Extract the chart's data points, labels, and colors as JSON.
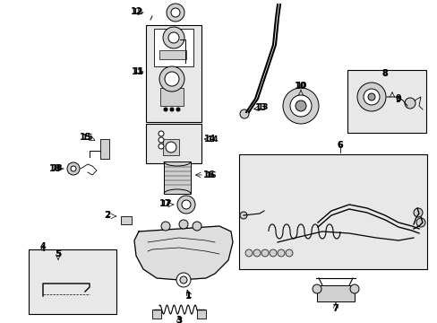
{
  "bg_color": "#ffffff",
  "figsize": [
    4.89,
    3.6
  ],
  "dpi": 100,
  "image_data": ""
}
